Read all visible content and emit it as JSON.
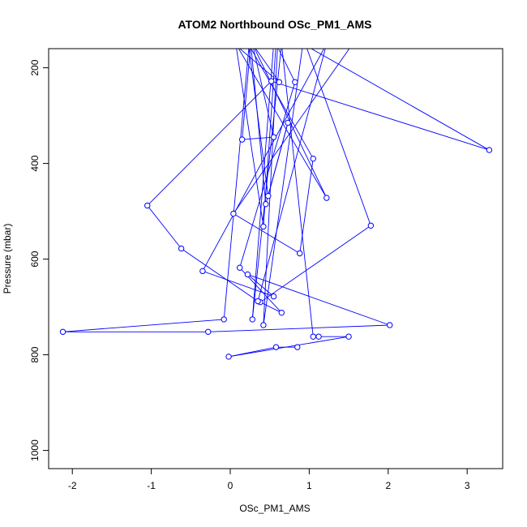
{
  "chart_data": {
    "type": "line",
    "title": "ATOM2 Northbound OSc_PM1_AMS",
    "xlabel": "OSc_PM1_AMS",
    "ylabel": "Pressure (mbar)",
    "xlim": [
      -2.3,
      3.45
    ],
    "ylim": [
      1038,
      160
    ],
    "y_reversed": true,
    "x_ticks": [
      -2,
      -1,
      0,
      1,
      2,
      3
    ],
    "y_ticks": [
      200,
      400,
      600,
      800,
      1000
    ],
    "colors": {
      "series": "#0000ff",
      "axis": "#000000",
      "background": "#ffffff"
    },
    "series": [
      {
        "x": [
          0.05,
          0.62,
          0.28,
          0.14,
          1.02,
          0.58,
          0.37,
          1.55,
          0.04,
          0.88,
          1.05,
          0.23,
          0.48,
          0.73,
          0.45,
          0.26,
          0.15,
          0.55,
          0.28,
          1.22,
          0.07,
          0.42,
          0.58,
          0.82,
          0.12,
          0.65,
          0.38,
          1.78,
          0.95,
          0.6,
          0.42,
          0.92,
          3.28,
          0.52,
          -1.05,
          -0.62,
          0.35,
          1.22,
          -0.35,
          0.55,
          0.22,
          2.02,
          -0.28,
          -2.12,
          -0.08,
          0.24,
          0.55,
          0.28,
          0.65,
          1.05,
          1.12,
          1.5,
          -0.02,
          0.58,
          0.85
        ],
        "y": [
          150,
          230,
          150,
          150,
          150,
          150,
          150,
          150,
          505,
          588,
          390,
          150,
          468,
          315,
          485,
          150,
          350,
          345,
          150,
          472,
          150,
          532,
          150,
          230,
          618,
          712,
          690,
          530,
          150,
          152,
          738,
          150,
          372,
          228,
          488,
          578,
          688,
          150,
          625,
          678,
          632,
          738,
          752,
          752,
          726,
          150,
          150,
          726,
          150,
          762,
          762,
          762,
          804,
          784,
          784
        ]
      }
    ]
  }
}
